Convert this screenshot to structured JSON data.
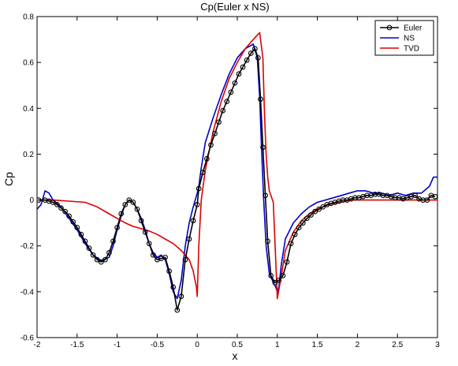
{
  "chart_data": {
    "type": "line",
    "title": "Cp(Euler x NS)",
    "xlabel": "x",
    "ylabel": "Cp",
    "xlim": [
      -2,
      3
    ],
    "ylim": [
      -0.6,
      0.8
    ],
    "xticks": [
      -2,
      -1.5,
      -1,
      -0.5,
      0,
      0.5,
      1,
      1.5,
      2,
      2.5,
      3
    ],
    "xtick_labels": [
      "-2",
      "-1.5",
      "-1",
      "-0.5",
      "0",
      "0.5",
      "1",
      "1.5",
      "2",
      "2.5",
      "3"
    ],
    "yticks": [
      -0.6,
      -0.4,
      -0.2,
      0,
      0.2,
      0.4,
      0.6,
      0.8
    ],
    "ytick_labels": [
      "-0.6",
      "-0.4",
      "-0.2",
      "0",
      "0.2",
      "0.4",
      "0.6",
      "0.8"
    ],
    "grid": false,
    "legend_position": "top-right",
    "series": [
      {
        "name": "Euler",
        "color": "#000000",
        "marker": "circle",
        "x": [
          -1.98,
          -1.9,
          -1.85,
          -1.8,
          -1.75,
          -1.7,
          -1.65,
          -1.6,
          -1.55,
          -1.5,
          -1.45,
          -1.4,
          -1.35,
          -1.3,
          -1.25,
          -1.2,
          -1.15,
          -1.1,
          -1.05,
          -1.0,
          -0.95,
          -0.9,
          -0.85,
          -0.8,
          -0.75,
          -0.7,
          -0.65,
          -0.6,
          -0.55,
          -0.5,
          -0.45,
          -0.4,
          -0.35,
          -0.3,
          -0.25,
          -0.2,
          -0.15,
          -0.1,
          -0.05,
          0.0,
          0.02,
          0.07,
          0.12,
          0.17,
          0.22,
          0.27,
          0.32,
          0.37,
          0.42,
          0.47,
          0.52,
          0.57,
          0.62,
          0.67,
          0.72,
          0.76,
          0.79,
          0.82,
          0.85,
          0.88,
          0.92,
          0.97,
          1.02,
          1.07,
          1.12,
          1.17,
          1.22,
          1.27,
          1.32,
          1.37,
          1.42,
          1.47,
          1.52,
          1.57,
          1.62,
          1.67,
          1.72,
          1.77,
          1.82,
          1.87,
          1.92,
          1.97,
          2.02,
          2.07,
          2.12,
          2.17,
          2.22,
          2.27,
          2.32,
          2.37,
          2.42,
          2.47,
          2.52,
          2.57,
          2.62,
          2.67,
          2.72,
          2.77,
          2.82,
          2.87,
          2.92,
          2.97
        ],
        "y": [
          0.0,
          0.0,
          -0.005,
          -0.01,
          -0.02,
          -0.035,
          -0.05,
          -0.07,
          -0.095,
          -0.12,
          -0.15,
          -0.18,
          -0.21,
          -0.24,
          -0.26,
          -0.27,
          -0.26,
          -0.23,
          -0.18,
          -0.12,
          -0.06,
          -0.02,
          0.0,
          -0.01,
          -0.04,
          -0.09,
          -0.14,
          -0.19,
          -0.24,
          -0.26,
          -0.255,
          -0.25,
          -0.31,
          -0.38,
          -0.48,
          -0.42,
          -0.26,
          -0.17,
          -0.09,
          -0.02,
          0.05,
          0.12,
          0.18,
          0.24,
          0.29,
          0.34,
          0.39,
          0.43,
          0.47,
          0.51,
          0.55,
          0.58,
          0.61,
          0.64,
          0.66,
          0.62,
          0.44,
          0.23,
          0.02,
          -0.18,
          -0.33,
          -0.36,
          -0.35,
          -0.33,
          -0.27,
          -0.19,
          -0.15,
          -0.12,
          -0.1,
          -0.08,
          -0.065,
          -0.05,
          -0.04,
          -0.03,
          -0.02,
          -0.015,
          -0.01,
          -0.005,
          0.0,
          0.0,
          0.005,
          0.01,
          0.01,
          0.015,
          0.02,
          0.02,
          0.025,
          0.025,
          0.02,
          0.02,
          0.015,
          0.01,
          0.01,
          0.005,
          0.01,
          0.015,
          0.02,
          0.005,
          0.0,
          0.0,
          0.02,
          0.015
        ]
      },
      {
        "name": "NS",
        "color": "#0000cc",
        "marker": "none",
        "x": [
          -2.0,
          -1.95,
          -1.9,
          -1.85,
          -1.8,
          -1.7,
          -1.6,
          -1.5,
          -1.4,
          -1.3,
          -1.2,
          -1.1,
          -1.05,
          -1.0,
          -0.95,
          -0.9,
          -0.85,
          -0.8,
          -0.75,
          -0.7,
          -0.65,
          -0.6,
          -0.55,
          -0.5,
          -0.45,
          -0.4,
          -0.35,
          -0.3,
          -0.25,
          -0.2,
          -0.15,
          -0.1,
          -0.05,
          0.0,
          0.02,
          0.05,
          0.1,
          0.2,
          0.3,
          0.4,
          0.5,
          0.6,
          0.7,
          0.75,
          0.78,
          0.8,
          0.83,
          0.86,
          0.9,
          0.95,
          0.98,
          1.0,
          1.02,
          1.05,
          1.1,
          1.2,
          1.3,
          1.4,
          1.5,
          1.6,
          1.7,
          1.8,
          1.9,
          2.0,
          2.1,
          2.2,
          2.3,
          2.4,
          2.5,
          2.6,
          2.7,
          2.8,
          2.9,
          2.95,
          3.0
        ],
        "y": [
          -0.04,
          -0.02,
          0.04,
          0.03,
          0.0,
          -0.03,
          -0.08,
          -0.13,
          -0.19,
          -0.24,
          -0.265,
          -0.25,
          -0.2,
          -0.13,
          -0.07,
          -0.02,
          0.0,
          -0.01,
          -0.04,
          -0.08,
          -0.13,
          -0.19,
          -0.23,
          -0.25,
          -0.24,
          -0.26,
          -0.32,
          -0.4,
          -0.43,
          -0.35,
          -0.2,
          -0.1,
          -0.03,
          0.03,
          0.06,
          0.14,
          0.25,
          0.36,
          0.46,
          0.55,
          0.62,
          0.66,
          0.68,
          0.62,
          0.45,
          0.25,
          0.0,
          -0.2,
          -0.32,
          -0.36,
          -0.38,
          -0.4,
          -0.38,
          -0.28,
          -0.17,
          -0.1,
          -0.06,
          -0.03,
          -0.01,
          0.0,
          0.01,
          0.02,
          0.03,
          0.04,
          0.04,
          0.03,
          0.03,
          0.02,
          0.03,
          0.02,
          0.03,
          0.03,
          0.06,
          0.1,
          0.1
        ]
      },
      {
        "name": "TVD",
        "color": "#dd0000",
        "marker": "none",
        "x": [
          -2.0,
          -1.8,
          -1.6,
          -1.4,
          -1.25,
          -1.1,
          -1.0,
          -0.9,
          -0.8,
          -0.7,
          -0.6,
          -0.5,
          -0.4,
          -0.3,
          -0.2,
          -0.1,
          -0.05,
          -0.01,
          0.0,
          0.02,
          0.05,
          0.1,
          0.2,
          0.3,
          0.4,
          0.5,
          0.6,
          0.7,
          0.78,
          0.82,
          0.84,
          0.86,
          0.88,
          0.9,
          0.95,
          1.0,
          1.05,
          1.1,
          1.2,
          1.3,
          1.4,
          1.5,
          1.6,
          1.7,
          1.8,
          1.9,
          2.0,
          2.1,
          2.2,
          2.3,
          2.4,
          2.5,
          2.6,
          2.7,
          2.8,
          2.9,
          3.0
        ],
        "y": [
          0.0,
          0.0,
          -0.005,
          -0.01,
          -0.03,
          -0.06,
          -0.08,
          -0.1,
          -0.115,
          -0.125,
          -0.135,
          -0.15,
          -0.17,
          -0.19,
          -0.22,
          -0.26,
          -0.31,
          -0.38,
          -0.42,
          -0.2,
          0.0,
          0.13,
          0.3,
          0.43,
          0.53,
          0.6,
          0.66,
          0.7,
          0.73,
          0.62,
          0.38,
          0.2,
          0.1,
          0.04,
          -0.01,
          -0.43,
          -0.33,
          -0.22,
          -0.14,
          -0.09,
          -0.06,
          -0.04,
          -0.025,
          -0.015,
          -0.01,
          0.0,
          0.0,
          0.0,
          0.0,
          0.0,
          0.0,
          0.0,
          0.0,
          0.0,
          0.0,
          0.0,
          0.0
        ]
      }
    ]
  }
}
